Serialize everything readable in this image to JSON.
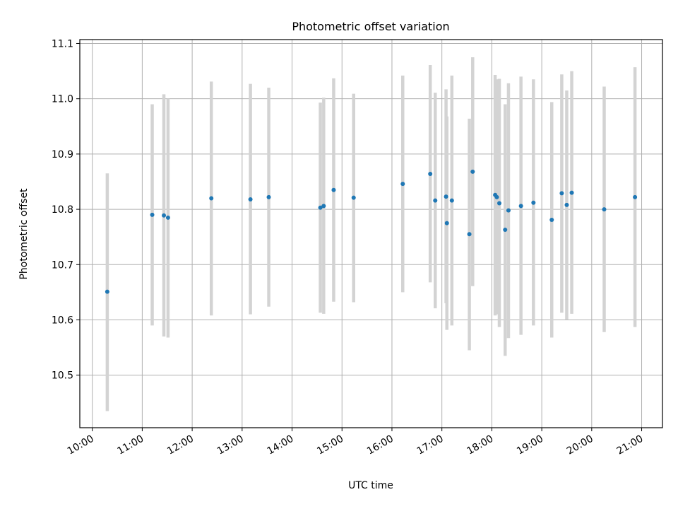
{
  "chart_data": {
    "type": "scatter",
    "title": "Photometric offset variation",
    "xlabel": "UTC time",
    "ylabel": "Photometric offset",
    "xlim": [
      "09:45",
      "21:25"
    ],
    "ylim": [
      10.405,
      11.107
    ],
    "x_ticks": [
      "10:00",
      "11:00",
      "12:00",
      "13:00",
      "14:00",
      "15:00",
      "16:00",
      "17:00",
      "18:00",
      "19:00",
      "20:00",
      "21:00"
    ],
    "y_ticks": [
      10.5,
      10.6,
      10.7,
      10.8,
      10.9,
      11.0,
      11.1
    ],
    "y_tick_labels": [
      "10.5",
      "10.6",
      "10.7",
      "10.8",
      "10.9",
      "11.0",
      "11.1"
    ],
    "grid": true,
    "colors": {
      "points": "#1f77b4",
      "error_bars": "#d3d3d3",
      "grid": "#b0b0b0"
    },
    "points": [
      {
        "time": "10:18",
        "y": 10.651,
        "err_low": 10.435,
        "err_high": 10.865
      },
      {
        "time": "11:12",
        "y": 10.79,
        "err_low": 10.59,
        "err_high": 10.99
      },
      {
        "time": "11:26",
        "y": 10.789,
        "err_low": 10.57,
        "err_high": 11.008
      },
      {
        "time": "11:31",
        "y": 10.785,
        "err_low": 10.568,
        "err_high": 11.0
      },
      {
        "time": "12:23",
        "y": 10.82,
        "err_low": 10.608,
        "err_high": 11.031
      },
      {
        "time": "13:10",
        "y": 10.818,
        "err_low": 10.61,
        "err_high": 11.027
      },
      {
        "time": "13:32",
        "y": 10.822,
        "err_low": 10.624,
        "err_high": 11.02
      },
      {
        "time": "14:34",
        "y": 10.803,
        "err_low": 10.613,
        "err_high": 10.993
      },
      {
        "time": "14:38",
        "y": 10.806,
        "err_low": 10.611,
        "err_high": 11.002
      },
      {
        "time": "14:50",
        "y": 10.835,
        "err_low": 10.633,
        "err_high": 11.037
      },
      {
        "time": "15:14",
        "y": 10.821,
        "err_low": 10.632,
        "err_high": 11.009
      },
      {
        "time": "16:13",
        "y": 10.846,
        "err_low": 10.65,
        "err_high": 11.042
      },
      {
        "time": "16:46",
        "y": 10.864,
        "err_low": 10.668,
        "err_high": 11.061
      },
      {
        "time": "16:52",
        "y": 10.816,
        "err_low": 10.621,
        "err_high": 11.011
      },
      {
        "time": "17:05",
        "y": 10.823,
        "err_low": 10.63,
        "err_high": 11.017
      },
      {
        "time": "17:06",
        "y": 10.775,
        "err_low": 10.582,
        "err_high": 10.968
      },
      {
        "time": "17:12",
        "y": 10.816,
        "err_low": 10.59,
        "err_high": 11.042
      },
      {
        "time": "17:33",
        "y": 10.755,
        "err_low": 10.545,
        "err_high": 10.964
      },
      {
        "time": "17:37",
        "y": 10.868,
        "err_low": 10.661,
        "err_high": 11.075
      },
      {
        "time": "18:04",
        "y": 10.826,
        "err_low": 10.608,
        "err_high": 11.043
      },
      {
        "time": "18:06",
        "y": 10.822,
        "err_low": 10.61,
        "err_high": 11.035
      },
      {
        "time": "18:09",
        "y": 10.811,
        "err_low": 10.587,
        "err_high": 11.036
      },
      {
        "time": "18:16",
        "y": 10.763,
        "err_low": 10.535,
        "err_high": 10.99
      },
      {
        "time": "18:20",
        "y": 10.798,
        "err_low": 10.567,
        "err_high": 11.028
      },
      {
        "time": "18:35",
        "y": 10.806,
        "err_low": 10.573,
        "err_high": 11.04
      },
      {
        "time": "18:50",
        "y": 10.812,
        "err_low": 10.59,
        "err_high": 11.035
      },
      {
        "time": "19:12",
        "y": 10.781,
        "err_low": 10.568,
        "err_high": 10.994
      },
      {
        "time": "19:24",
        "y": 10.829,
        "err_low": 10.613,
        "err_high": 11.044
      },
      {
        "time": "19:30",
        "y": 10.808,
        "err_low": 10.601,
        "err_high": 11.015
      },
      {
        "time": "19:36",
        "y": 10.83,
        "err_low": 10.611,
        "err_high": 11.05
      },
      {
        "time": "20:15",
        "y": 10.8,
        "err_low": 10.578,
        "err_high": 11.022
      },
      {
        "time": "20:52",
        "y": 10.822,
        "err_low": 10.587,
        "err_high": 11.057
      }
    ]
  }
}
